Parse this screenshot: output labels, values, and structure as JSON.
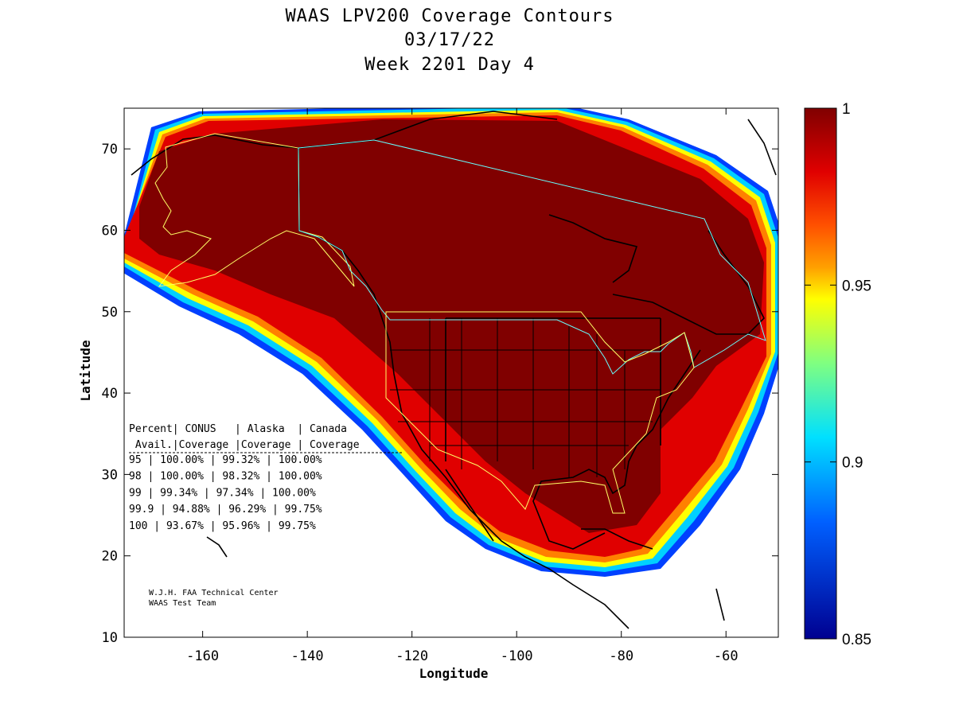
{
  "title": {
    "line1": "WAAS LPV200 Coverage Contours",
    "line2": "03/17/22",
    "line3": "Week 2201 Day 4"
  },
  "axes": {
    "xlabel": "Longitude",
    "ylabel": "Latitude",
    "xticks": [
      -160,
      -140,
      -120,
      -100,
      -80,
      -60
    ],
    "yticks": [
      10,
      20,
      30,
      40,
      50,
      60,
      70
    ],
    "xlim": [
      -175,
      -50
    ],
    "ylim": [
      10,
      75
    ]
  },
  "colorbar": {
    "ticks": [
      "1",
      "0.95",
      "0.9",
      "0.85"
    ],
    "range": [
      0.85,
      1.0
    ]
  },
  "coverage_table": {
    "header1": "Percent| CONUS   | Alaska  | Canada",
    "header2": " Avail.|Coverage |Coverage | Coverage",
    "rows": [
      "  95   | 100.00%  | 99.32% | 100.00%",
      "  98   | 100.00%  | 98.32% | 100.00%",
      "  99   | 99.34%  | 97.34% | 100.00%",
      "99.9   | 94.88%  | 96.29% | 99.75%",
      " 100   | 93.67%  | 95.96% | 99.75%"
    ]
  },
  "credit": {
    "line1": "W.J.H. FAA Technical Center",
    "line2": "WAAS Test Team"
  },
  "colors": {
    "full_coverage": "#800000",
    "red": "#e00000",
    "orange": "#ff8000",
    "yellow": "#ffff00",
    "cyan": "#00d0ff",
    "blue": "#0040ff",
    "boundary_yellow": "#ffff66",
    "boundary_cyan": "#66ffff"
  }
}
